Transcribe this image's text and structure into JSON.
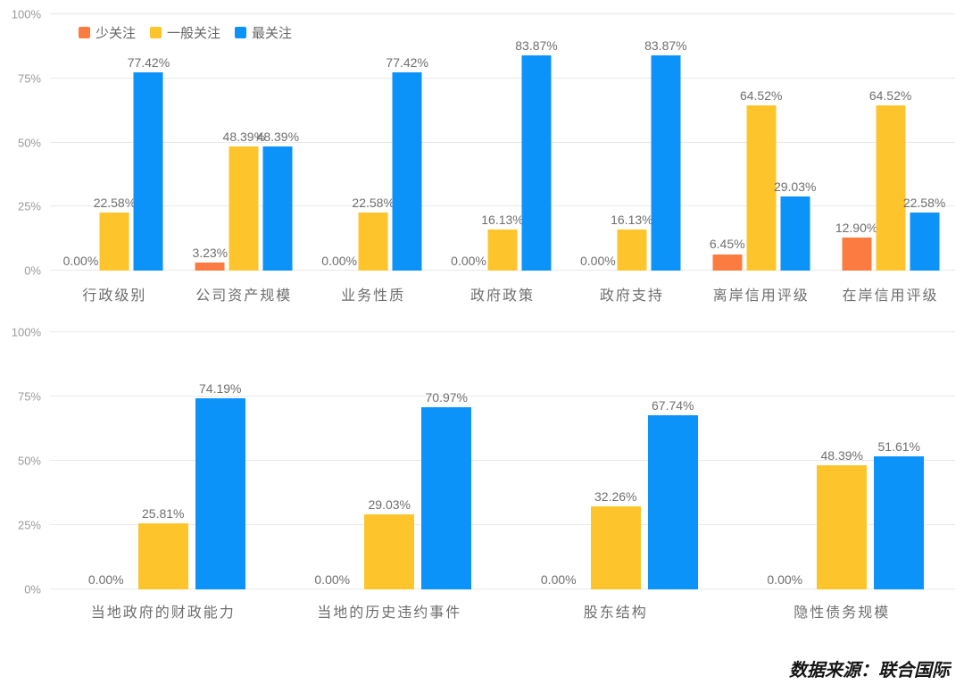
{
  "source_note": "数据来源：联合国际",
  "colors": {
    "less_focus": "#FC7B40",
    "general_focus": "#FDC52B",
    "most_focus": "#0C93FA",
    "gridline": "#e9e9e9",
    "axis_text": "#9a9a9a",
    "label_text": "#6f6f6f"
  },
  "legend": {
    "position": "top-left",
    "items": [
      {
        "label": "少关注",
        "color": "#FC7B40"
      },
      {
        "label": "一般关注",
        "color": "#FDC52B"
      },
      {
        "label": "最关注",
        "color": "#0C93FA"
      }
    ]
  },
  "chart_data": [
    {
      "type": "bar",
      "title": "",
      "xlabel": "",
      "ylabel": "",
      "ylim": [
        0,
        100
      ],
      "yticks": [
        "0%",
        "25%",
        "50%",
        "75%",
        "100%"
      ],
      "grid": true,
      "legend_position": "top-left",
      "value_label_format": "0.00%",
      "categories": [
        "行政级别",
        "公司资产规模",
        "业务性质",
        "政府政策",
        "政府支持",
        "离岸信用评级",
        "在岸信用评级"
      ],
      "series": [
        {
          "name": "少关注",
          "color": "#FC7B40",
          "values": [
            0.0,
            3.23,
            0.0,
            0.0,
            0.0,
            6.45,
            12.9
          ]
        },
        {
          "name": "一般关注",
          "color": "#FDC52B",
          "values": [
            22.58,
            48.39,
            22.58,
            16.13,
            16.13,
            64.52,
            64.52
          ]
        },
        {
          "name": "最关注",
          "color": "#0C93FA",
          "values": [
            77.42,
            48.39,
            77.42,
            83.87,
            83.87,
            29.03,
            22.58
          ]
        }
      ]
    },
    {
      "type": "bar",
      "title": "",
      "xlabel": "",
      "ylabel": "",
      "ylim": [
        0,
        100
      ],
      "yticks": [
        "0%",
        "25%",
        "50%",
        "75%",
        "100%"
      ],
      "grid": true,
      "legend_position": "none",
      "value_label_format": "0.00%",
      "categories": [
        "当地政府的财政能力",
        "当地的历史违约事件",
        "股东结构",
        "隐性债务规模"
      ],
      "series": [
        {
          "name": "少关注",
          "color": "#FC7B40",
          "values": [
            0.0,
            0.0,
            0.0,
            0.0
          ]
        },
        {
          "name": "一般关注",
          "color": "#FDC52B",
          "values": [
            25.81,
            29.03,
            32.26,
            48.39
          ]
        },
        {
          "name": "最关注",
          "color": "#0C93FA",
          "values": [
            74.19,
            70.97,
            67.74,
            51.61
          ]
        }
      ]
    }
  ]
}
